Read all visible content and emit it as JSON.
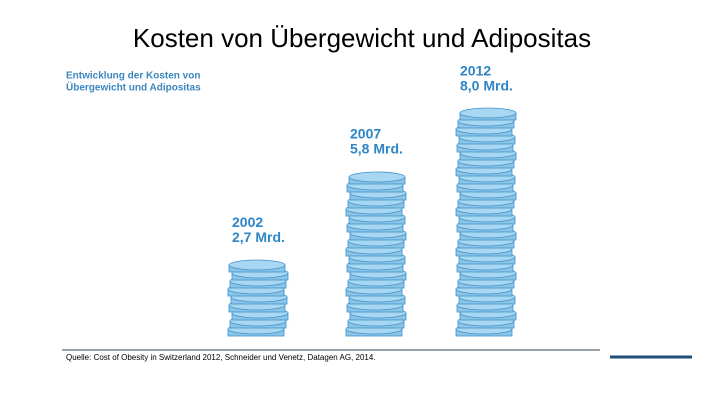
{
  "chart_data": {
    "type": "bar",
    "title": "Kosten von Übergewicht und Adipositas",
    "subtitle": [
      "Entwicklung der Kosten von",
      "Übergewicht und Adipositas"
    ],
    "categories": [
      "2002",
      "2007",
      "2012"
    ],
    "values": [
      2.7,
      5.8,
      8.0
    ],
    "value_labels": [
      "2,7 Mrd.",
      "5,8 Mrd.",
      "8,0 Mrd."
    ],
    "color": "#a9d6f0",
    "source": "Quelle: Cost of Obesity in Switzerland 2012, Schneider und Venetz, Datagen AG, 2014."
  }
}
